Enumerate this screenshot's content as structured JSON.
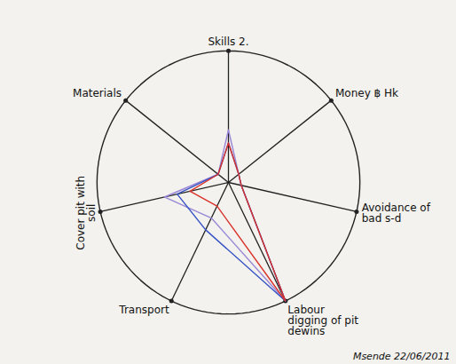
{
  "chart_data": {
    "type": "radar",
    "categories": [
      "Skills 2.",
      "Money ฿ Hk",
      "Avoidance of bad s-d",
      "Labour digging of pit dewins",
      "Transport",
      "Cover pit with soil",
      "Materials"
    ],
    "series": [
      {
        "color": "#9a86d6",
        "values": [
          4,
          1,
          1,
          10,
          3,
          5,
          1
        ]
      },
      {
        "color": "#3552c4",
        "values": [
          3,
          1,
          1,
          10,
          4,
          4,
          1
        ]
      },
      {
        "color": "#d8322a",
        "values": [
          3,
          1,
          1,
          10,
          2,
          3,
          1
        ]
      }
    ],
    "ylim": [
      0,
      10
    ],
    "tick_labels": false,
    "annotations": [
      "Msende 22/06/2011"
    ]
  }
}
